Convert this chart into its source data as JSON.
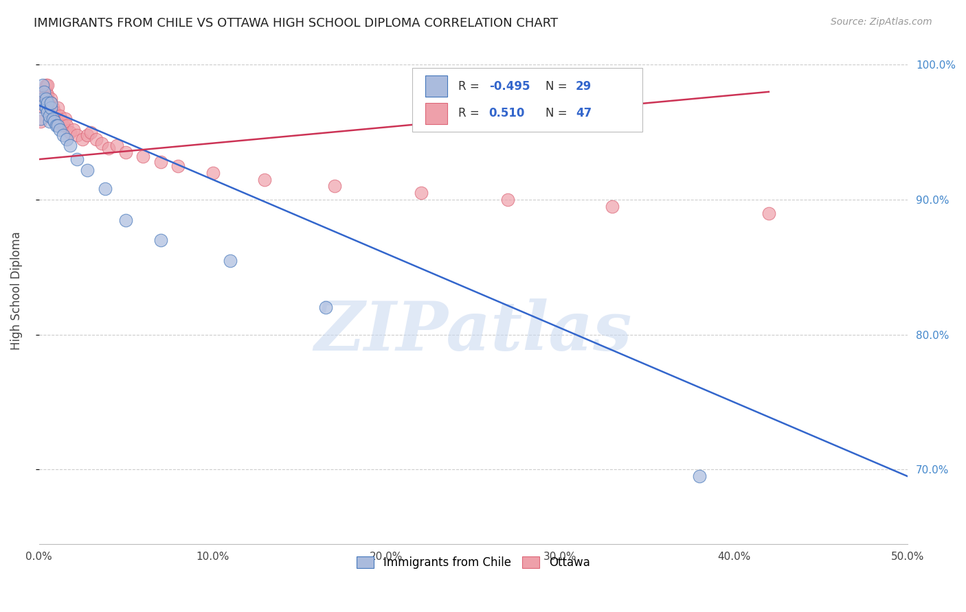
{
  "title": "IMMIGRANTS FROM CHILE VS OTTAWA HIGH SCHOOL DIPLOMA CORRELATION CHART",
  "source": "Source: ZipAtlas.com",
  "ylabel_label": "High School Diploma",
  "right_ytick_vals": [
    0.7,
    0.8,
    0.9,
    1.0
  ],
  "right_ytick_labels": [
    "70.0%",
    "80.0%",
    "90.0%",
    "100.0%"
  ],
  "xtick_vals": [
    0.0,
    0.1,
    0.2,
    0.3,
    0.4,
    0.5
  ],
  "xtick_labels": [
    "0.0%",
    "10.0%",
    "20.0%",
    "30.0%",
    "40.0%",
    "50.0%"
  ],
  "xmin": 0.0,
  "xmax": 0.5,
  "ymin": 0.645,
  "ymax": 1.02,
  "blue_R": -0.495,
  "blue_N": 29,
  "pink_R": 0.51,
  "pink_N": 47,
  "blue_color": "#aabbdd",
  "pink_color": "#eea0aa",
  "blue_edge_color": "#4477bb",
  "pink_edge_color": "#dd6677",
  "blue_line_color": "#3366cc",
  "pink_line_color": "#cc3355",
  "right_axis_color": "#4488cc",
  "watermark": "ZIPatlas",
  "legend_labels": [
    "Immigrants from Chile",
    "Ottawa"
  ],
  "blue_scatter_x": [
    0.001,
    0.002,
    0.002,
    0.003,
    0.003,
    0.004,
    0.004,
    0.005,
    0.005,
    0.006,
    0.006,
    0.007,
    0.007,
    0.008,
    0.009,
    0.01,
    0.011,
    0.012,
    0.014,
    0.016,
    0.018,
    0.022,
    0.028,
    0.038,
    0.05,
    0.07,
    0.11,
    0.165,
    0.38
  ],
  "blue_scatter_y": [
    0.96,
    0.975,
    0.985,
    0.97,
    0.98,
    0.968,
    0.975,
    0.965,
    0.972,
    0.958,
    0.962,
    0.968,
    0.972,
    0.96,
    0.958,
    0.955,
    0.955,
    0.952,
    0.948,
    0.945,
    0.94,
    0.93,
    0.922,
    0.908,
    0.885,
    0.87,
    0.855,
    0.82,
    0.695
  ],
  "pink_scatter_x": [
    0.001,
    0.002,
    0.002,
    0.003,
    0.003,
    0.004,
    0.004,
    0.005,
    0.005,
    0.005,
    0.006,
    0.006,
    0.007,
    0.007,
    0.008,
    0.008,
    0.009,
    0.009,
    0.01,
    0.01,
    0.011,
    0.012,
    0.013,
    0.014,
    0.015,
    0.016,
    0.018,
    0.02,
    0.022,
    0.025,
    0.028,
    0.03,
    0.033,
    0.036,
    0.04,
    0.045,
    0.05,
    0.06,
    0.07,
    0.08,
    0.1,
    0.13,
    0.17,
    0.22,
    0.27,
    0.33,
    0.42
  ],
  "pink_scatter_y": [
    0.958,
    0.972,
    0.978,
    0.968,
    0.975,
    0.98,
    0.985,
    0.975,
    0.978,
    0.985,
    0.962,
    0.97,
    0.975,
    0.972,
    0.965,
    0.968,
    0.96,
    0.965,
    0.958,
    0.962,
    0.968,
    0.962,
    0.958,
    0.955,
    0.96,
    0.955,
    0.95,
    0.952,
    0.948,
    0.945,
    0.948,
    0.95,
    0.945,
    0.942,
    0.938,
    0.94,
    0.935,
    0.932,
    0.928,
    0.925,
    0.92,
    0.915,
    0.91,
    0.905,
    0.9,
    0.895,
    0.89
  ],
  "blue_trend_x": [
    0.0,
    0.5
  ],
  "blue_trend_y": [
    0.97,
    0.695
  ],
  "pink_trend_x": [
    0.0,
    0.42
  ],
  "pink_trend_y": [
    0.93,
    0.98
  ]
}
